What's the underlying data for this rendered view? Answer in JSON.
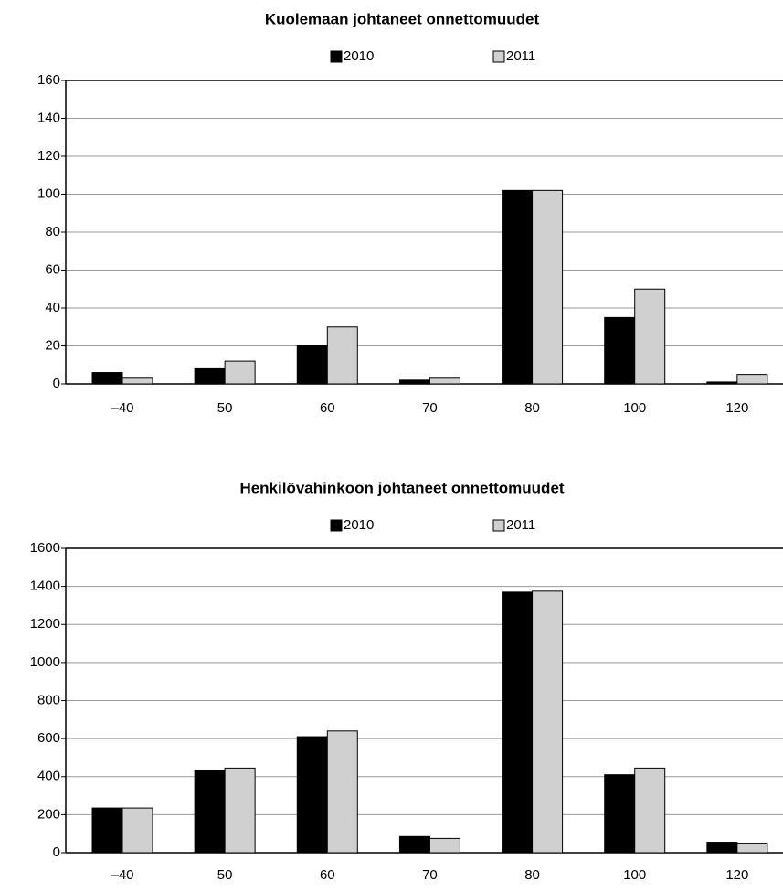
{
  "chart_data": [
    {
      "type": "bar",
      "title": "Kuolemaan johtaneet onnettomuudet",
      "categories": [
        "–40",
        "50",
        "60",
        "70",
        "80",
        "100",
        "120"
      ],
      "series": [
        {
          "name": "2010",
          "color": "#000000",
          "values": [
            6,
            8,
            20,
            2,
            102,
            35,
            1
          ]
        },
        {
          "name": "2011",
          "color": "#d0d0d0",
          "values": [
            3,
            12,
            30,
            3,
            102,
            50,
            5
          ]
        }
      ],
      "ylim": [
        0,
        160
      ],
      "yticks": [
        0,
        20,
        40,
        60,
        80,
        100,
        120,
        140,
        160
      ],
      "grid": true,
      "legend": "top"
    },
    {
      "type": "bar",
      "title": "Henkilövahinkoon johtaneet onnettomuudet",
      "categories": [
        "–40",
        "50",
        "60",
        "70",
        "80",
        "100",
        "120"
      ],
      "series": [
        {
          "name": "2010",
          "color": "#000000",
          "values": [
            235,
            435,
            610,
            85,
            1370,
            410,
            55
          ]
        },
        {
          "name": "2011",
          "color": "#d0d0d0",
          "values": [
            235,
            445,
            640,
            75,
            1375,
            445,
            50
          ]
        }
      ],
      "ylim": [
        0,
        1600
      ],
      "yticks": [
        0,
        200,
        400,
        600,
        800,
        1000,
        1200,
        1400,
        1600
      ],
      "grid": true,
      "legend": "top"
    }
  ]
}
